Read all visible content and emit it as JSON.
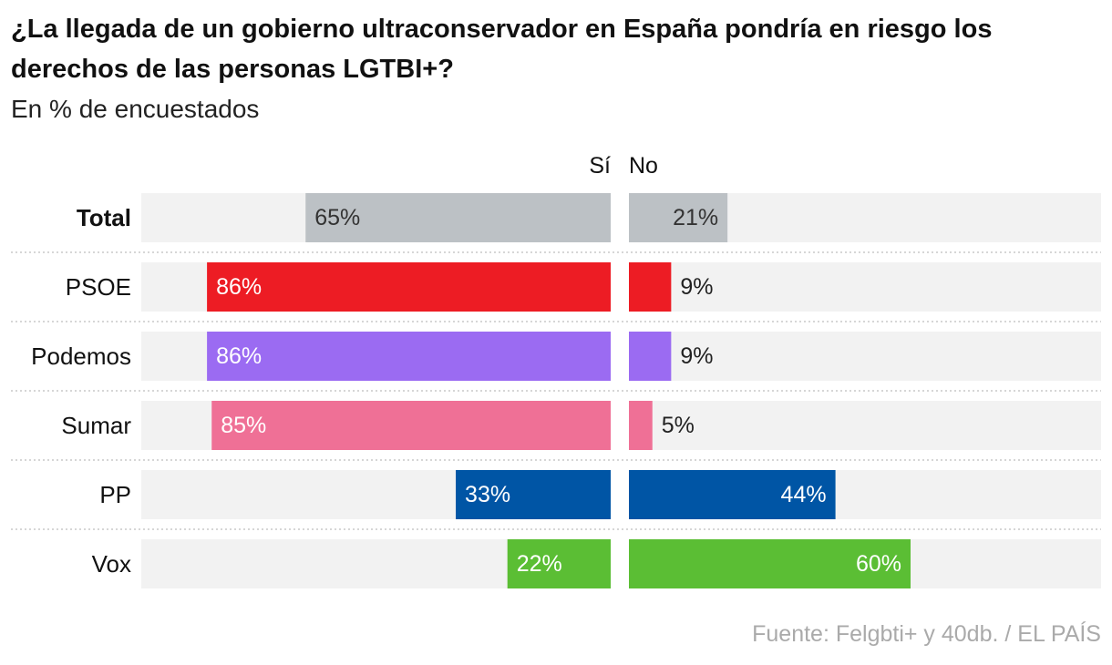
{
  "chart_data": {
    "type": "bar",
    "title": "¿La llegada de un gobierno ultraconservador en España pondría en riesgo los derechos de las personas LGTBI+?",
    "subtitle": "En % de encuestados",
    "source": "Fuente: Felgbti+ y 40db. / EL PAÍS",
    "categories": [
      "Total",
      "PSOE",
      "Podemos",
      "Sumar",
      "PP",
      "Vox"
    ],
    "series": [
      {
        "name": "Sí",
        "values": [
          65,
          86,
          86,
          85,
          33,
          22
        ],
        "labels": [
          "65%",
          "86%",
          "86%",
          "85%",
          "33%",
          "22%"
        ]
      },
      {
        "name": "No",
        "values": [
          21,
          9,
          9,
          5,
          44,
          60
        ],
        "labels": [
          "21%",
          "9%",
          "9%",
          "5%",
          "44%",
          "60%"
        ]
      }
    ],
    "colors": [
      "#bcc1c5",
      "#ed1c24",
      "#9b6bf2",
      "#ef7096",
      "#0055a5",
      "#5bbe34"
    ],
    "xlim": [
      0,
      100
    ],
    "bold_category": "Total",
    "legend": "top-center"
  }
}
